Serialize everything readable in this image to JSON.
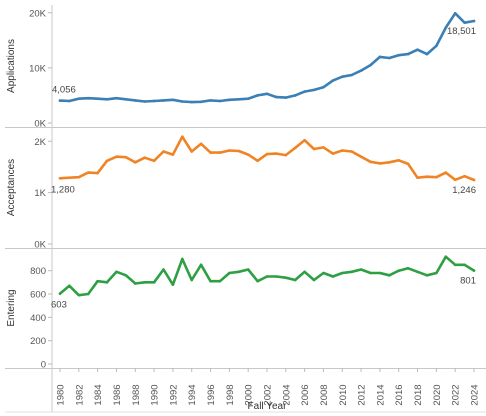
{
  "chart_data": {
    "type": "line",
    "x": [
      1980,
      1981,
      1982,
      1983,
      1984,
      1985,
      1986,
      1987,
      1988,
      1989,
      1990,
      1991,
      1992,
      1993,
      1994,
      1995,
      1996,
      1997,
      1998,
      1999,
      2000,
      2001,
      2002,
      2003,
      2004,
      2005,
      2006,
      2007,
      2008,
      2009,
      2010,
      2011,
      2012,
      2013,
      2014,
      2015,
      2016,
      2017,
      2018,
      2019,
      2020,
      2021,
      2022,
      2023,
      2024
    ],
    "xlabel": "Fall Year",
    "x_tick_labels": [
      "1980",
      "1982",
      "1984",
      "1986",
      "1988",
      "1990",
      "1992",
      "1994",
      "1996",
      "1998",
      "2000",
      "2002",
      "2004",
      "2006",
      "2008",
      "2010",
      "2012",
      "2014",
      "2016",
      "2018",
      "2020",
      "2022",
      "2024"
    ],
    "panels": [
      {
        "ylabel": "Applications",
        "color": "#3a7fb5",
        "ylim": [
          0,
          20500
        ],
        "y_ticks": [
          0,
          10000,
          20000
        ],
        "y_tick_labels": [
          "0K",
          "10K",
          "20K"
        ],
        "values": [
          4056,
          4000,
          4400,
          4500,
          4400,
          4300,
          4500,
          4300,
          4100,
          3900,
          4000,
          4100,
          4200,
          3900,
          3800,
          3850,
          4100,
          4000,
          4200,
          4300,
          4400,
          5000,
          5300,
          4700,
          4600,
          5000,
          5700,
          6000,
          6500,
          7700,
          8400,
          8700,
          9500,
          10500,
          12000,
          11800,
          12300,
          12500,
          13300,
          12500,
          14000,
          17300,
          19900,
          18200,
          18501
        ],
        "labels": [
          {
            "year": 1980,
            "text": "4,056"
          },
          {
            "year": 2024,
            "text": "18,501"
          }
        ]
      },
      {
        "ylabel": "Acceptances",
        "color": "#f08424",
        "ylim": [
          0,
          2200
        ],
        "y_ticks": [
          0,
          1000,
          2000
        ],
        "y_tick_labels": [
          "0K",
          "1K",
          "2K"
        ],
        "values": [
          1280,
          1290,
          1300,
          1390,
          1380,
          1620,
          1700,
          1690,
          1590,
          1680,
          1620,
          1800,
          1740,
          2090,
          1800,
          1950,
          1780,
          1780,
          1820,
          1810,
          1740,
          1620,
          1750,
          1760,
          1730,
          1870,
          2020,
          1850,
          1880,
          1760,
          1820,
          1800,
          1700,
          1600,
          1570,
          1590,
          1630,
          1560,
          1290,
          1310,
          1300,
          1390,
          1250,
          1320,
          1246
        ],
        "labels": [
          {
            "year": 1980,
            "text": "1,280"
          },
          {
            "year": 2024,
            "text": "1,246"
          }
        ]
      },
      {
        "ylabel": "Entering",
        "color": "#2ea043",
        "ylim": [
          0,
          960
        ],
        "y_ticks": [
          0,
          200,
          400,
          600,
          800
        ],
        "y_tick_labels": [
          "0",
          "200",
          "400",
          "600",
          "800"
        ],
        "values": [
          603,
          670,
          590,
          600,
          710,
          700,
          790,
          760,
          690,
          700,
          700,
          810,
          680,
          900,
          720,
          850,
          710,
          710,
          780,
          790,
          810,
          710,
          750,
          750,
          740,
          720,
          790,
          720,
          780,
          750,
          780,
          790,
          810,
          780,
          780,
          760,
          800,
          820,
          790,
          760,
          780,
          920,
          850,
          850,
          801
        ],
        "labels": [
          {
            "year": 1980,
            "text": "603"
          },
          {
            "year": 2024,
            "text": "801"
          }
        ]
      }
    ]
  }
}
